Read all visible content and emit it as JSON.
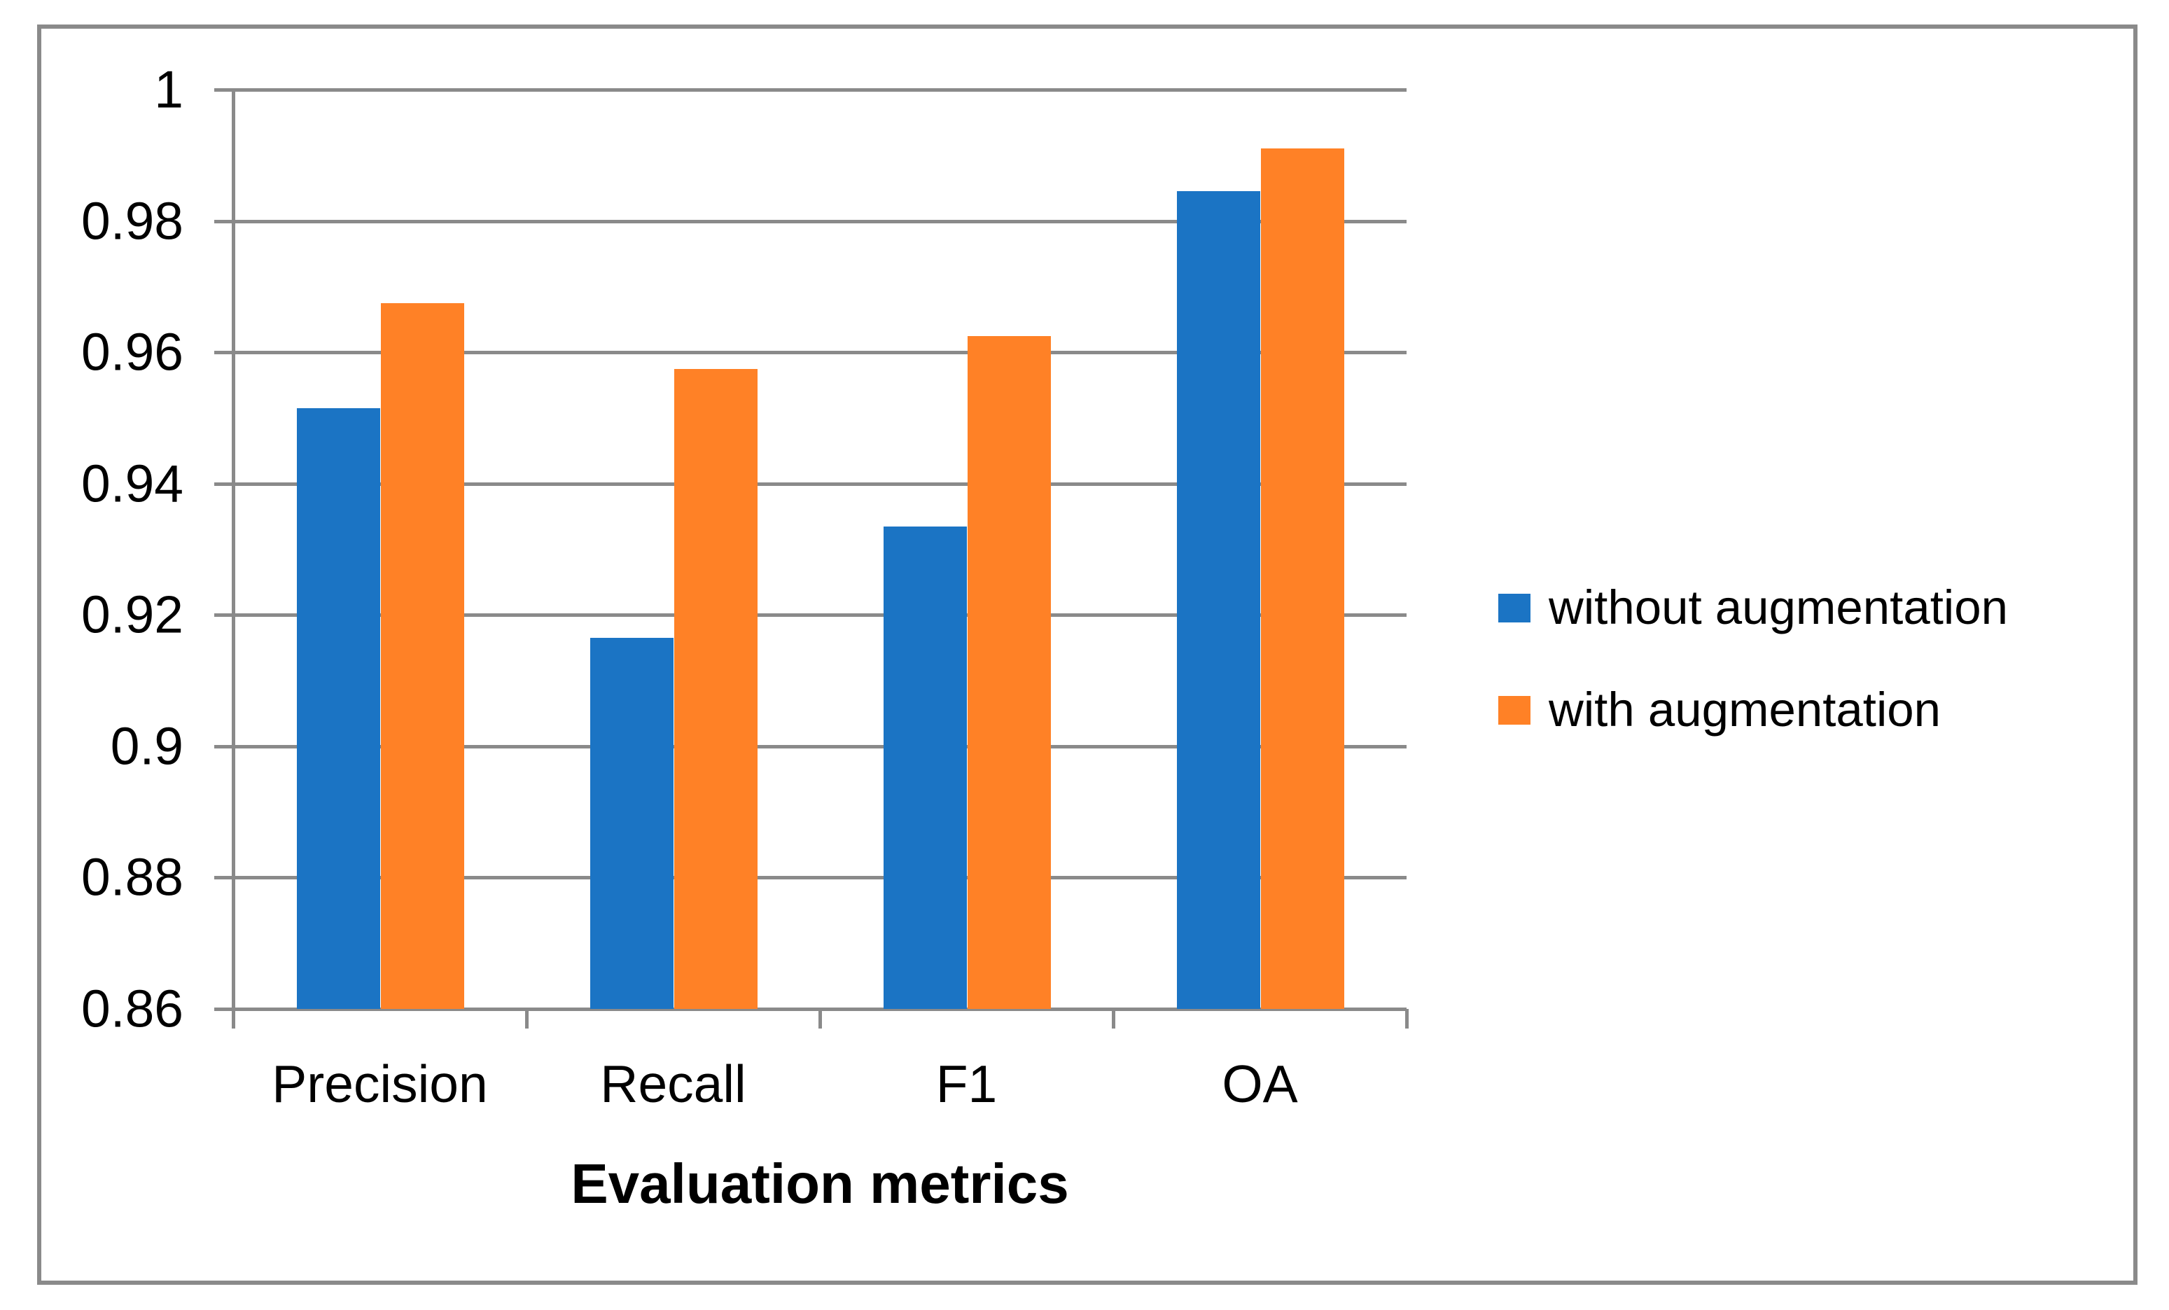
{
  "chart_data": {
    "type": "bar",
    "title": "",
    "xlabel": "Evaluation metrics",
    "ylabel": "",
    "categories": [
      "Precision",
      "Recall",
      "F1",
      "OA"
    ],
    "series": [
      {
        "name": "without augmentation",
        "color": "#1B74C4",
        "values": [
          0.9515,
          0.9165,
          0.9335,
          0.9845
        ]
      },
      {
        "name": "with augmentation",
        "color": "#FF8126",
        "values": [
          0.9675,
          0.9575,
          0.9625,
          0.991
        ]
      }
    ],
    "ylim": [
      0.86,
      1.0
    ],
    "ytick_values": [
      1.0,
      0.98,
      0.96,
      0.94,
      0.92,
      0.9,
      0.88,
      0.86
    ],
    "ytick_labels": [
      "1",
      "0.98",
      "0.96",
      "0.94",
      "0.92",
      "0.9",
      "0.88",
      "0.86"
    ],
    "grid": "horizontal",
    "legend_position": "right"
  },
  "colors": {
    "grid": "#8A8A8A",
    "frame": "#8A8A8A",
    "text": "#000000",
    "background": "#FFFFFF"
  }
}
